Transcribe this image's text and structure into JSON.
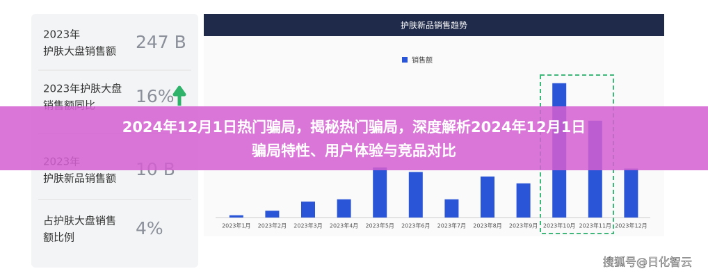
{
  "stats": [
    {
      "label": [
        "2023年",
        "护肤大盘销售额"
      ],
      "value": "247 B"
    },
    {
      "label": [
        "2023年护肤大盘",
        "销售额同比"
      ],
      "value": "16%"
    },
    {
      "label": [
        "2023年",
        "护肤新品销售额"
      ],
      "value": "10 B"
    },
    {
      "label": [
        "占护肤大盘销售",
        "额比例"
      ],
      "value": "4%"
    }
  ],
  "chart_data": {
    "type": "bar",
    "title": "护肤新品销售趋势",
    "categories": [
      "2023年1月",
      "2023年2月",
      "2023年3月",
      "2023年4月",
      "2023年5月",
      "2023年6月",
      "2023年7月",
      "2023年8月",
      "2023年9月",
      "2023年10月",
      "2023年11月",
      "2023年12月"
    ],
    "series": [
      {
        "name": "销售额",
        "color": "#2a55d6",
        "values": [
          2,
          6,
          14,
          16,
          44,
          40,
          16,
          36,
          30,
          118,
          85,
          43
        ]
      }
    ],
    "ylim": [
      0,
      130
    ]
  },
  "banner": {
    "lines": [
      "2024年12月1日热门骗局，揭秘热门骗局，深度解析2024年12月1日",
      "骗局特性、用户体验与竞品对比"
    ]
  },
  "watermark": "搜狐号@日化智云"
}
